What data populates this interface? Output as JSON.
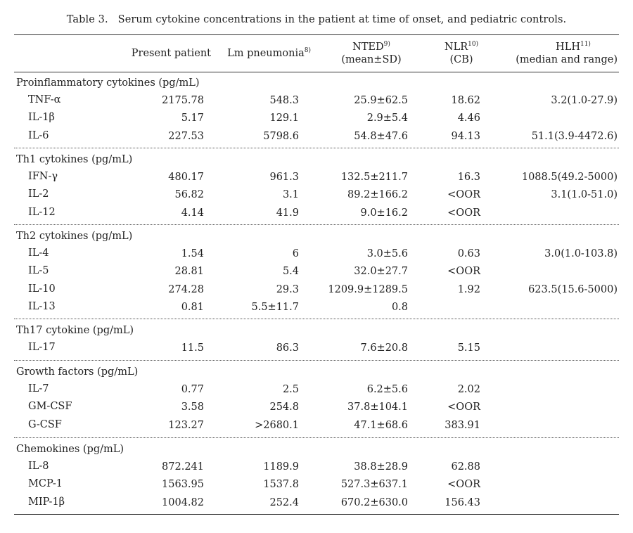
{
  "caption": {
    "label": "Table 3.",
    "text": "Serum cytokine concentrations in the patient at time of onset, and pediatric controls."
  },
  "columns": {
    "present": "Present patient",
    "lm": "Lm pneumonia",
    "lm_ref": "8)",
    "nted": "NTED",
    "nted_ref": "9)",
    "nted_sub": "(mean±SD)",
    "nlr": "NLR",
    "nlr_ref": "10)",
    "nlr_sub": "(CB)",
    "hlh": "HLH",
    "hlh_ref": "11)",
    "hlh_sub": "(median and range)"
  },
  "sections": [
    {
      "title": "Proinflammatory cytokines (pg/mL)",
      "rows": [
        {
          "name": "TNF-α",
          "present": "2175.78",
          "lm": "548.3",
          "nted": "25.9±62.5",
          "nlr": "18.62",
          "hlh": "3.2(1.0-27.9)"
        },
        {
          "name": "IL-1β",
          "present": "5.17",
          "lm": "129.1",
          "nted": "2.9±5.4",
          "nlr": "4.46",
          "hlh": ""
        },
        {
          "name": "IL-6",
          "present": "227.53",
          "lm": "5798.6",
          "nted": "54.8±47.6",
          "nlr": "94.13",
          "hlh": "51.1(3.9-4472.6)"
        }
      ]
    },
    {
      "title": "Th1 cytokines (pg/mL)",
      "rows": [
        {
          "name": "IFN-γ",
          "present": "480.17",
          "lm": "961.3",
          "nted": "132.5±211.7",
          "nlr": "16.3",
          "hlh": "1088.5(49.2-5000)"
        },
        {
          "name": "IL-2",
          "present": "56.82",
          "lm": "3.1",
          "nted": "89.2±166.2",
          "nlr": "<OOR",
          "hlh": "3.1(1.0-51.0)"
        },
        {
          "name": "IL-12",
          "present": "4.14",
          "lm": "41.9",
          "nted": "9.0±16.2",
          "nlr": "<OOR",
          "hlh": ""
        }
      ]
    },
    {
      "title": "Th2 cytokines (pg/mL)",
      "rows": [
        {
          "name": "IL-4",
          "present": "1.54",
          "lm": "6",
          "nted": "3.0±5.6",
          "nlr": "0.63",
          "hlh": "3.0(1.0-103.8)"
        },
        {
          "name": "IL-5",
          "present": "28.81",
          "lm": "5.4",
          "nted": "32.0±27.7",
          "nlr": "<OOR",
          "hlh": ""
        },
        {
          "name": "IL-10",
          "present": "274.28",
          "lm": "29.3",
          "nted": "1209.9±1289.5",
          "nlr": "1.92",
          "hlh": "623.5(15.6-5000)"
        },
        {
          "name": "IL-13",
          "present": "0.81",
          "lm": "5.5±11.7",
          "nted": "0.8",
          "nlr": "",
          "hlh": ""
        }
      ]
    },
    {
      "title": "Th17 cytokine (pg/mL)",
      "rows": [
        {
          "name": "IL-17",
          "present": "11.5",
          "lm": "86.3",
          "nted": "7.6±20.8",
          "nlr": "5.15",
          "hlh": ""
        }
      ]
    },
    {
      "title": "Growth factors (pg/mL)",
      "rows": [
        {
          "name": "IL-7",
          "present": "0.77",
          "lm": "2.5",
          "nted": "6.2±5.6",
          "nlr": "2.02",
          "hlh": ""
        },
        {
          "name": "GM-CSF",
          "present": "3.58",
          "lm": "254.8",
          "nted": "37.8±104.1",
          "nlr": "<OOR",
          "hlh": ""
        },
        {
          "name": "G-CSF",
          "present": "123.27",
          "lm": ">2680.1",
          "nted": "47.1±68.6",
          "nlr": "383.91",
          "hlh": ""
        }
      ]
    },
    {
      "title": "Chemokines (pg/mL)",
      "rows": [
        {
          "name": "IL-8",
          "present": "872.241",
          "lm": "1189.9",
          "nted": "38.8±28.9",
          "nlr": "62.88",
          "hlh": ""
        },
        {
          "name": "MCP-1",
          "present": "1563.95",
          "lm": "1537.8",
          "nted": "527.3±637.1",
          "nlr": "<OOR",
          "hlh": ""
        },
        {
          "name": "MIP-1β",
          "present": "1004.82",
          "lm": "252.4",
          "nted": "670.2±630.0",
          "nlr": "156.43",
          "hlh": ""
        }
      ]
    }
  ]
}
